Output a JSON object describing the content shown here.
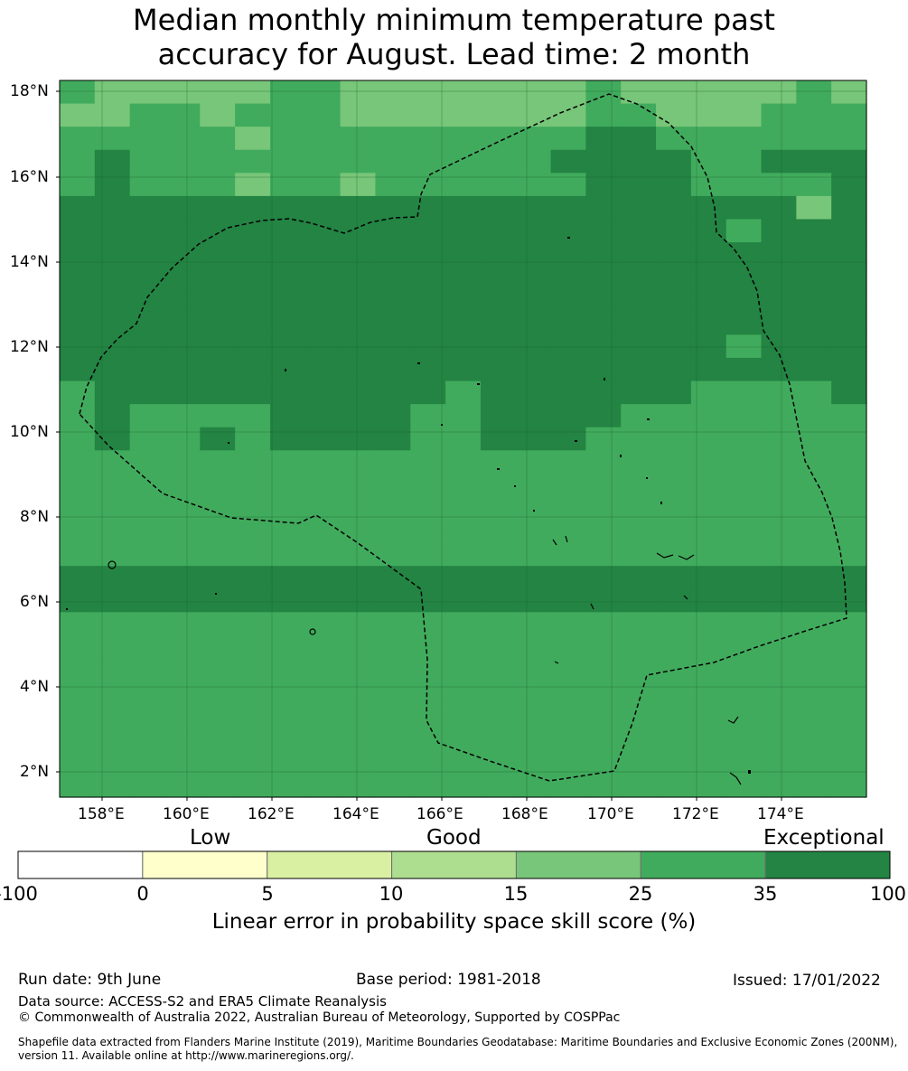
{
  "title": {
    "line1": "Median monthly minimum temperature past",
    "line2": "accuracy for August. Lead time: 2 month"
  },
  "map": {
    "lat_labels": [
      "18°N",
      "16°N",
      "14°N",
      "12°N",
      "10°N",
      "8°N",
      "6°N",
      "4°N",
      "2°N"
    ],
    "lon_labels": [
      "158°E",
      "160°E",
      "162°E",
      "164°E",
      "166°E",
      "168°E",
      "170°E",
      "172°E",
      "174°E"
    ],
    "grid_colors": [
      "#ffffff",
      "#ffffcc",
      "#d9f0a3",
      "#addd8e",
      "#78c679",
      "#41ab5d",
      "#238443"
    ],
    "skill_grid": [
      [
        5,
        4,
        4,
        4,
        4,
        4,
        5,
        5,
        4,
        4,
        4,
        4,
        4,
        4,
        4,
        5,
        4,
        4,
        4,
        4,
        4,
        5,
        4
      ],
      [
        4,
        4,
        5,
        5,
        4,
        5,
        5,
        5,
        4,
        4,
        4,
        4,
        4,
        4,
        4,
        5,
        5,
        4,
        4,
        4,
        5,
        5,
        5
      ],
      [
        5,
        5,
        5,
        5,
        5,
        4,
        5,
        5,
        5,
        5,
        5,
        5,
        5,
        5,
        5,
        6,
        6,
        5,
        5,
        5,
        5,
        5,
        5
      ],
      [
        5,
        6,
        5,
        5,
        5,
        5,
        5,
        5,
        5,
        5,
        5,
        5,
        5,
        5,
        6,
        6,
        6,
        6,
        5,
        5,
        6,
        6,
        6
      ],
      [
        5,
        6,
        5,
        5,
        5,
        4,
        5,
        5,
        4,
        5,
        5,
        5,
        5,
        5,
        5,
        6,
        6,
        6,
        5,
        5,
        5,
        5,
        6
      ],
      [
        6,
        6,
        6,
        6,
        6,
        6,
        6,
        6,
        6,
        6,
        6,
        6,
        6,
        6,
        6,
        6,
        6,
        6,
        6,
        6,
        6,
        4,
        6
      ],
      [
        6,
        6,
        6,
        6,
        6,
        6,
        6,
        6,
        6,
        6,
        6,
        6,
        6,
        6,
        6,
        6,
        6,
        6,
        6,
        5,
        6,
        6,
        6
      ],
      [
        6,
        6,
        6,
        6,
        6,
        6,
        6,
        6,
        6,
        6,
        6,
        6,
        6,
        6,
        6,
        6,
        6,
        6,
        6,
        6,
        6,
        6,
        6
      ],
      [
        6,
        6,
        6,
        6,
        6,
        6,
        6,
        6,
        6,
        6,
        6,
        6,
        6,
        6,
        6,
        6,
        6,
        6,
        6,
        6,
        6,
        6,
        6
      ],
      [
        6,
        6,
        6,
        6,
        6,
        6,
        6,
        6,
        6,
        6,
        6,
        6,
        6,
        6,
        6,
        6,
        6,
        6,
        6,
        6,
        6,
        6,
        6
      ],
      [
        6,
        6,
        6,
        6,
        6,
        6,
        6,
        6,
        6,
        6,
        6,
        6,
        6,
        6,
        6,
        6,
        6,
        6,
        6,
        6,
        6,
        6,
        6
      ],
      [
        6,
        6,
        6,
        6,
        6,
        6,
        6,
        6,
        6,
        6,
        6,
        6,
        6,
        6,
        6,
        6,
        6,
        6,
        6,
        5,
        6,
        6,
        6
      ],
      [
        6,
        6,
        6,
        6,
        6,
        6,
        6,
        6,
        6,
        6,
        6,
        6,
        6,
        6,
        6,
        6,
        6,
        6,
        6,
        6,
        6,
        6,
        6
      ],
      [
        5,
        6,
        6,
        6,
        6,
        6,
        6,
        6,
        6,
        6,
        6,
        5,
        6,
        6,
        6,
        6,
        6,
        6,
        5,
        5,
        5,
        5,
        6
      ],
      [
        5,
        6,
        5,
        5,
        5,
        5,
        6,
        6,
        6,
        6,
        5,
        5,
        6,
        6,
        6,
        6,
        5,
        5,
        5,
        5,
        5,
        5,
        5
      ],
      [
        5,
        6,
        5,
        5,
        6,
        5,
        6,
        6,
        6,
        6,
        5,
        5,
        6,
        6,
        6,
        5,
        5,
        5,
        5,
        5,
        5,
        5,
        5
      ],
      [
        5,
        5,
        5,
        5,
        5,
        5,
        5,
        5,
        5,
        5,
        5,
        5,
        5,
        5,
        5,
        5,
        5,
        5,
        5,
        5,
        5,
        5,
        5
      ],
      [
        5,
        5,
        5,
        5,
        5,
        5,
        5,
        5,
        5,
        5,
        5,
        5,
        5,
        5,
        5,
        5,
        5,
        5,
        5,
        5,
        5,
        5,
        5
      ],
      [
        5,
        5,
        5,
        5,
        5,
        5,
        5,
        5,
        5,
        5,
        5,
        5,
        5,
        5,
        5,
        5,
        5,
        5,
        5,
        5,
        5,
        5,
        5
      ],
      [
        5,
        5,
        5,
        5,
        5,
        5,
        5,
        5,
        5,
        5,
        5,
        5,
        5,
        5,
        5,
        5,
        5,
        5,
        5,
        5,
        5,
        5,
        5
      ],
      [
        5,
        5,
        5,
        5,
        5,
        5,
        5,
        5,
        5,
        5,
        5,
        5,
        5,
        5,
        5,
        5,
        5,
        5,
        5,
        5,
        5,
        5,
        5
      ],
      [
        6,
        6,
        6,
        6,
        6,
        6,
        6,
        6,
        6,
        6,
        6,
        6,
        6,
        6,
        6,
        6,
        6,
        6,
        6,
        6,
        6,
        6,
        6
      ],
      [
        6,
        6,
        6,
        6,
        6,
        6,
        6,
        6,
        6,
        6,
        6,
        6,
        6,
        6,
        6,
        6,
        6,
        6,
        6,
        6,
        6,
        6,
        6
      ],
      [
        5,
        5,
        5,
        5,
        5,
        5,
        5,
        5,
        5,
        5,
        5,
        5,
        5,
        5,
        5,
        5,
        5,
        5,
        5,
        5,
        5,
        5,
        5
      ],
      [
        5,
        5,
        5,
        5,
        5,
        5,
        5,
        5,
        5,
        5,
        5,
        5,
        5,
        5,
        5,
        5,
        5,
        5,
        5,
        5,
        5,
        5,
        5
      ],
      [
        5,
        5,
        5,
        5,
        5,
        5,
        5,
        5,
        5,
        5,
        5,
        5,
        5,
        5,
        5,
        5,
        5,
        5,
        5,
        5,
        5,
        5,
        5
      ],
      [
        5,
        5,
        5,
        5,
        5,
        5,
        5,
        5,
        5,
        5,
        5,
        5,
        5,
        5,
        5,
        5,
        5,
        5,
        5,
        5,
        5,
        5,
        5
      ],
      [
        5,
        5,
        5,
        5,
        5,
        5,
        5,
        5,
        5,
        5,
        5,
        5,
        5,
        5,
        5,
        5,
        5,
        5,
        5,
        5,
        5,
        5,
        5
      ],
      [
        5,
        5,
        5,
        5,
        5,
        5,
        5,
        5,
        5,
        5,
        5,
        5,
        5,
        5,
        5,
        5,
        5,
        5,
        5,
        5,
        5,
        5,
        5
      ],
      [
        5,
        5,
        5,
        5,
        5,
        5,
        5,
        5,
        5,
        5,
        5,
        5,
        5,
        5,
        5,
        5,
        5,
        5,
        5,
        5,
        5,
        5,
        5
      ],
      [
        5,
        5,
        5,
        5,
        5,
        5,
        5,
        5,
        5,
        5,
        5,
        5,
        5,
        5,
        5,
        5,
        5,
        5,
        5,
        5,
        5,
        5,
        5
      ]
    ]
  },
  "colorbar": {
    "low_label": "Low",
    "good_label": "Good",
    "exceptional_label": "Exceptional",
    "ticks": [
      "-100",
      "0",
      "5",
      "10",
      "15",
      "25",
      "35",
      "100"
    ],
    "colors": [
      "#ffffff",
      "#ffffcc",
      "#d9f0a3",
      "#addd8e",
      "#78c679",
      "#41ab5d",
      "#238443"
    ],
    "title": "Linear error in probability space skill score (%)"
  },
  "footer": {
    "run_date": "Run date: 9th June",
    "base_period": "Base period: 1981-2018",
    "issued": "Issued: 17/01/2022",
    "data_source": "Data source: ACCESS-S2 and ERA5 Climate Reanalysis",
    "copyright": "© Commonwealth of Australia 2022, Australian Bureau of Meteorology, Supported by COSPPac",
    "shapefile": "Shapefile data extracted from Flanders Marine Institute (2019), Maritime Boundaries Geodatabase: Maritime Boundaries and Exclusive Economic Zones (200NM), version 11. Available online at http://www.marineregions.org/."
  }
}
